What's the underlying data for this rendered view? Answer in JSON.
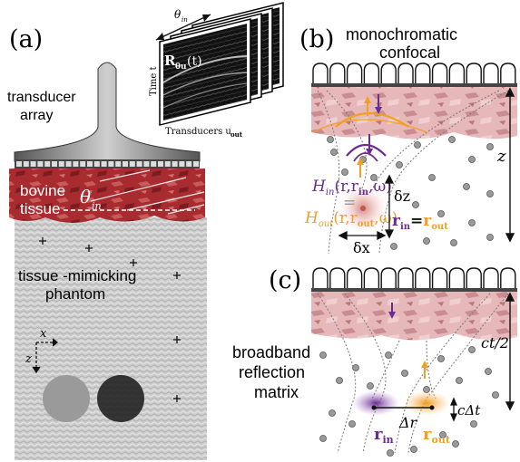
{
  "panel_a": {
    "label": "(a)",
    "transducer_label_line1": "transducer",
    "transducer_label_line2": "array",
    "tissue_label_line1": "bovine",
    "tissue_label_line2": "tissue",
    "angle_symbol": "θ",
    "angle_sub": "in",
    "phantom_line1": "tissue -mimicking",
    "phantom_line2": "phantom",
    "axis_x": "x",
    "axis_z": "z",
    "matrix": {
      "angle_symbol": "θ",
      "angle_sub": "in",
      "R_symbol": "R",
      "R_sub": "θu",
      "R_arg": "(t)",
      "time_label": "Time t",
      "transducers_label": "Transducers u",
      "transducers_sub": "out"
    }
  },
  "panel_b": {
    "label": "(b)",
    "title_line1": "monochromatic",
    "title_line2": "confocal",
    "depth_symbol": "z",
    "hin_H": "H",
    "hin_sub": "in",
    "hin_args_open": "(r,r",
    "hin_args_sub": "in",
    "hin_args_close": ",ω)",
    "equals": "=",
    "hout_H": "H",
    "hout_sub": "out",
    "hout_args_open": "(r,r",
    "hout_args_sub": "out",
    "hout_args_close": ",ω)",
    "dz_label": "δz",
    "dx_label": "δx",
    "rin": "r",
    "rin_sub": "in",
    "req": "=",
    "rout": "r",
    "rout_sub": "out"
  },
  "panel_c": {
    "label": "(c)",
    "title_line1": "broadband",
    "title_line2": "reflection",
    "title_line3": "matrix",
    "depth_label": "ct/2",
    "dt_label": "cΔt",
    "dr_label": "Δr",
    "rin": "r",
    "rin_sub": "in",
    "rout": "r",
    "rout_sub": "out"
  },
  "colors": {
    "tissue": "#9e2a2a",
    "tissue_light": "#dba5a8",
    "purple": "#6a2c91",
    "orange": "#f2a024"
  }
}
